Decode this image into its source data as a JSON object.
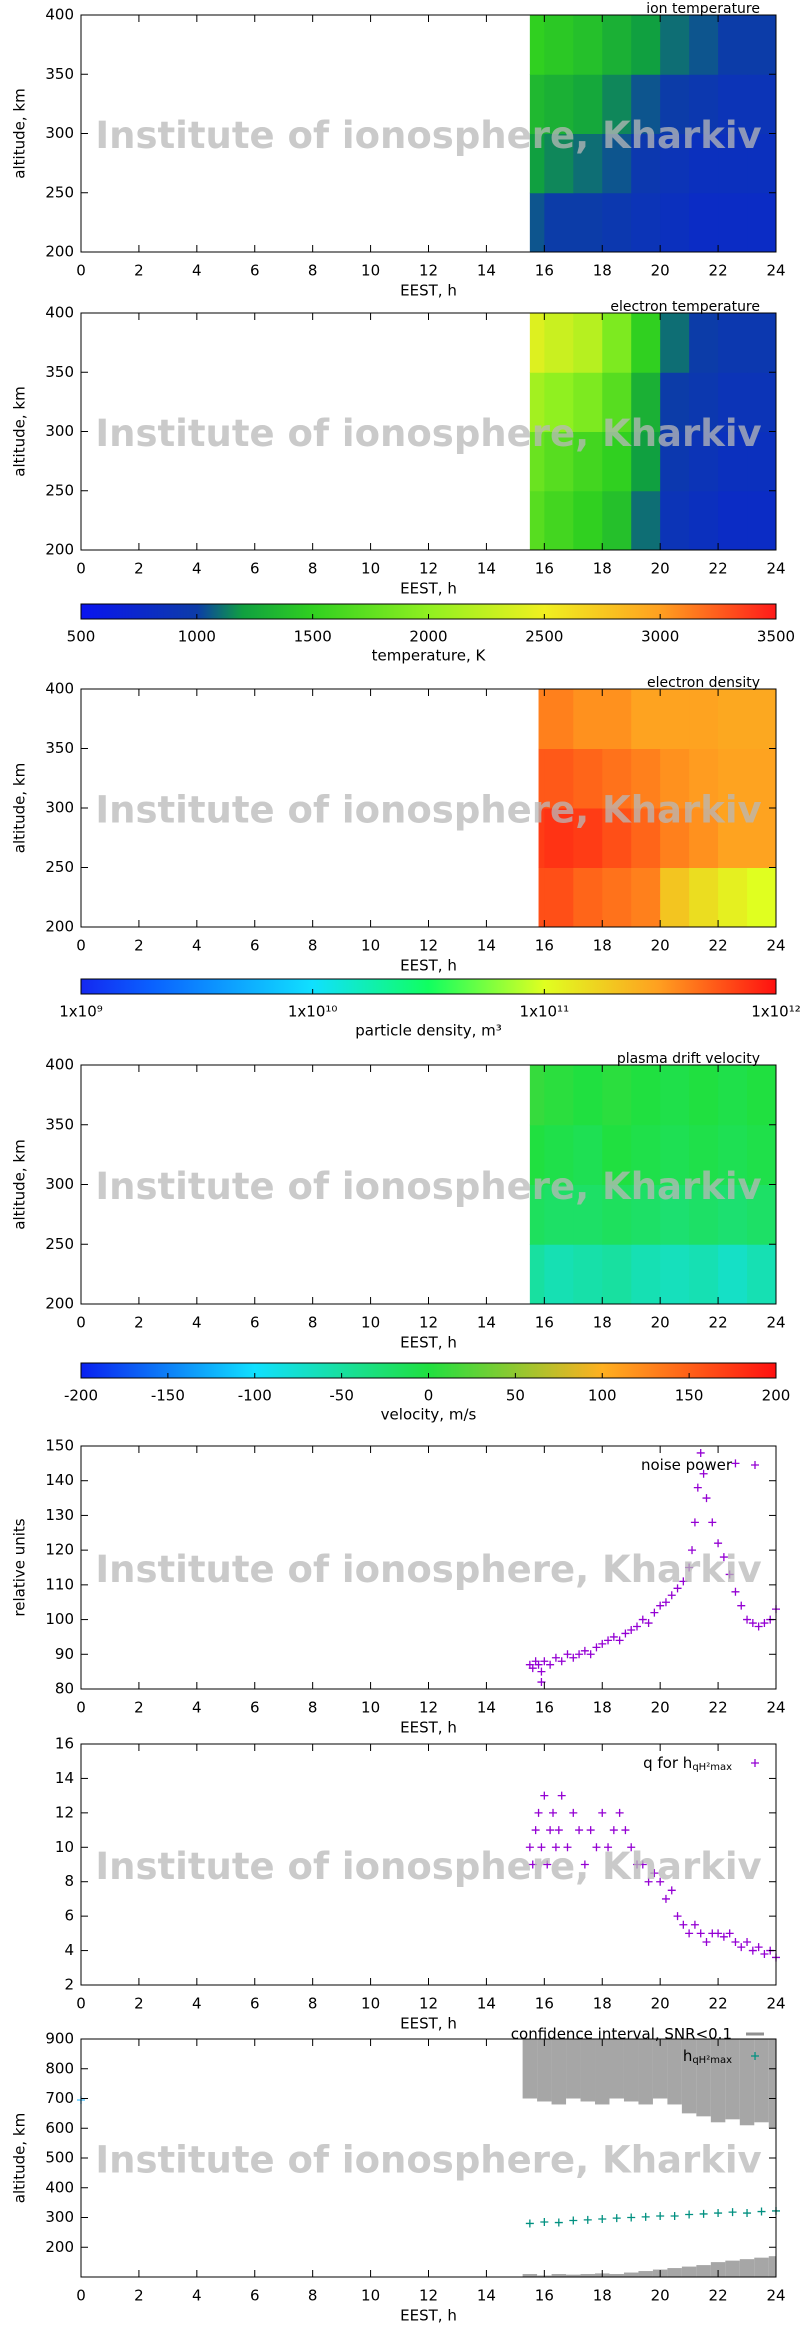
{
  "watermark": "Institute of ionosphere, Kharkiv",
  "chart_data": [
    {
      "type": "heatmap",
      "title": "ion temperature",
      "xlabel": "EEST, h",
      "ylabel": "altitude, km",
      "xlim": [
        0,
        24
      ],
      "xticks": [
        0,
        2,
        4,
        6,
        8,
        10,
        12,
        14,
        16,
        18,
        20,
        22,
        24
      ],
      "ylim": [
        200,
        400
      ],
      "yticks": [
        200,
        250,
        300,
        350,
        400
      ],
      "xbins": [
        15.5,
        16,
        17,
        18,
        19,
        20,
        21,
        22,
        23,
        24
      ],
      "ybins": [
        200,
        250,
        300,
        350,
        400
      ],
      "z": [
        [
          1050,
          1000,
          1000,
          950,
          900,
          850,
          800,
          800,
          800
        ],
        [
          1200,
          1150,
          1100,
          1050,
          950,
          900,
          850,
          850,
          850
        ],
        [
          1350,
          1300,
          1250,
          1150,
          1050,
          1000,
          950,
          900,
          900
        ],
        [
          1500,
          1450,
          1400,
          1300,
          1200,
          1100,
          1050,
          1000,
          1000
        ]
      ]
    },
    {
      "type": "heatmap",
      "title": "electron temperature",
      "xlabel": "EEST, h",
      "ylabel": "altitude, km",
      "xlim": [
        0,
        24
      ],
      "xticks": [
        0,
        2,
        4,
        6,
        8,
        10,
        12,
        14,
        16,
        18,
        20,
        22,
        24
      ],
      "ylim": [
        200,
        400
      ],
      "yticks": [
        200,
        250,
        300,
        350,
        400
      ],
      "xbins": [
        15.5,
        16,
        17,
        18,
        19,
        20,
        21,
        22,
        23,
        24
      ],
      "ybins": [
        200,
        250,
        300,
        350,
        400
      ],
      "z": [
        [
          1700,
          1600,
          1500,
          1400,
          1100,
          900,
          850,
          800,
          800
        ],
        [
          1800,
          1700,
          1600,
          1500,
          1200,
          950,
          900,
          850,
          850
        ],
        [
          2100,
          2000,
          1900,
          1700,
          1300,
          1000,
          950,
          900,
          900
        ],
        [
          2400,
          2300,
          2200,
          1900,
          1500,
          1100,
          1000,
          950,
          950
        ]
      ]
    },
    {
      "type": "colorbar",
      "label": "temperature, K",
      "lim": [
        500,
        3500
      ],
      "ticks": [
        500,
        1000,
        1500,
        2000,
        2500,
        3000,
        3500
      ],
      "colormap": [
        [
          0,
          "#0a14f0"
        ],
        [
          0.167,
          "#0c3ca8"
        ],
        [
          0.233,
          "#10a040"
        ],
        [
          0.333,
          "#30d020"
        ],
        [
          0.5,
          "#90f020"
        ],
        [
          0.667,
          "#f0f020"
        ],
        [
          0.833,
          "#ffa020"
        ],
        [
          1,
          "#ff1a1a"
        ]
      ]
    },
    {
      "type": "heatmap",
      "title": "electron density",
      "xlabel": "EEST, h",
      "ylabel": "altitude, km",
      "xlim": [
        0,
        24
      ],
      "xticks": [
        0,
        2,
        4,
        6,
        8,
        10,
        12,
        14,
        16,
        18,
        20,
        22,
        24
      ],
      "ylim": [
        200,
        400
      ],
      "yticks": [
        200,
        250,
        300,
        350,
        400
      ],
      "xbins": [
        15.8,
        16,
        17,
        18,
        19,
        20,
        21,
        22,
        23,
        24
      ],
      "ybins": [
        200,
        250,
        300,
        350,
        400
      ],
      "z": [
        [
          600000000000,
          600000000000,
          500000000000,
          450000000000,
          400000000000,
          200000000000,
          150000000000,
          120000000000,
          100000000000
        ],
        [
          700000000000,
          750000000000,
          700000000000,
          600000000000,
          500000000000,
          400000000000,
          350000000000,
          300000000000,
          300000000000
        ],
        [
          550000000000,
          550000000000,
          500000000000,
          450000000000,
          400000000000,
          350000000000,
          320000000000,
          300000000000,
          300000000000
        ],
        [
          400000000000,
          400000000000,
          350000000000,
          350000000000,
          300000000000,
          300000000000,
          300000000000,
          280000000000,
          280000000000
        ]
      ]
    },
    {
      "type": "colorbar",
      "label": "particle density, m³",
      "log": true,
      "lim": [
        1000000000,
        1000000000000
      ],
      "ticks": [
        {
          "value": 1000000000,
          "label": "1x10⁹"
        },
        {
          "value": 10000000000,
          "label": "1x10¹⁰"
        },
        {
          "value": 100000000000,
          "label": "1x10¹¹"
        },
        {
          "value": 1000000000000,
          "label": "1x10¹²"
        }
      ],
      "colormap": [
        [
          0,
          "#1428f0"
        ],
        [
          0.1,
          "#0a60ff"
        ],
        [
          0.333,
          "#10e0ff"
        ],
        [
          0.5,
          "#10ff60"
        ],
        [
          0.667,
          "#e0ff20"
        ],
        [
          0.83,
          "#ffa020"
        ],
        [
          1,
          "#ff1010"
        ]
      ]
    },
    {
      "type": "heatmap",
      "title": "plasma drift velocity",
      "xlabel": "EEST, h",
      "ylabel": "altitude, km",
      "xlim": [
        0,
        24
      ],
      "xticks": [
        0,
        2,
        4,
        6,
        8,
        10,
        12,
        14,
        16,
        18,
        20,
        22,
        24
      ],
      "ylim": [
        200,
        400
      ],
      "yticks": [
        200,
        250,
        300,
        350,
        400
      ],
      "xbins": [
        15.5,
        16,
        17,
        18,
        19,
        20,
        21,
        22,
        23,
        24
      ],
      "ybins": [
        200,
        250,
        300,
        350,
        400
      ],
      "z": [
        [
          -50,
          -60,
          -55,
          -50,
          -60,
          -65,
          -60,
          -70,
          -60
        ],
        [
          -15,
          -20,
          -20,
          -15,
          -20,
          -25,
          -20,
          -25,
          -20
        ],
        [
          0,
          -5,
          -10,
          0,
          -5,
          -10,
          -5,
          -10,
          -5
        ],
        [
          10,
          5,
          0,
          5,
          0,
          -5,
          0,
          -5,
          0
        ]
      ]
    },
    {
      "type": "colorbar",
      "label": "velocity, m/s",
      "lim": [
        -200,
        200
      ],
      "ticks": [
        -200,
        -150,
        -100,
        -50,
        0,
        50,
        100,
        150,
        200
      ],
      "colormap": [
        [
          0,
          "#0a20f0"
        ],
        [
          0.25,
          "#10e0ff"
        ],
        [
          0.5,
          "#20e040"
        ],
        [
          0.75,
          "#ffb020"
        ],
        [
          1,
          "#ff1010"
        ]
      ]
    },
    {
      "type": "scatter",
      "xlabel": "EEST, h",
      "ylabel": "relative units",
      "xlim": [
        0,
        24
      ],
      "xticks": [
        0,
        2,
        4,
        6,
        8,
        10,
        12,
        14,
        16,
        18,
        20,
        22,
        24
      ],
      "ylim": [
        80,
        150
      ],
      "yticks": [
        80,
        90,
        100,
        110,
        120,
        130,
        140,
        150
      ],
      "series": [
        {
          "name": "noise power",
          "color": "#9400d3",
          "x": [
            15.5,
            15.6,
            15.7,
            15.8,
            15.9,
            16,
            16.2,
            16.4,
            16.6,
            16.8,
            17,
            17.2,
            17.4,
            17.6,
            17.8,
            18,
            18.2,
            18.4,
            18.6,
            18.8,
            19,
            19.2,
            19.4,
            19.6,
            19.8,
            20,
            20.2,
            20.4,
            20.6,
            20.8,
            21,
            21.1,
            21.2,
            21.3,
            21.4,
            21.5,
            21.6,
            21.8,
            22,
            22.2,
            22.4,
            22.6,
            22.8,
            23,
            23.2,
            23.4,
            23.6,
            23.8,
            24,
            15.9,
            22.6
          ],
          "values": [
            87,
            86,
            88,
            87,
            85,
            88,
            87,
            89,
            88,
            90,
            89,
            90,
            91,
            90,
            92,
            93,
            94,
            95,
            94,
            96,
            97,
            98,
            100,
            99,
            102,
            104,
            105,
            107,
            109,
            111,
            115,
            120,
            128,
            138,
            148,
            142,
            135,
            128,
            122,
            118,
            113,
            108,
            104,
            100,
            99,
            98,
            99,
            100,
            103,
            82,
            145
          ]
        }
      ]
    },
    {
      "type": "scatter",
      "xlabel": "EEST, h",
      "xlim": [
        0,
        24
      ],
      "xticks": [
        0,
        2,
        4,
        6,
        8,
        10,
        12,
        14,
        16,
        18,
        20,
        22,
        24
      ],
      "ylim": [
        2,
        16
      ],
      "yticks": [
        2,
        4,
        6,
        8,
        10,
        12,
        14,
        16
      ],
      "series": [
        {
          "name": "q for h",
          "name_sub": "qH²max",
          "color": "#9400d3",
          "x": [
            15.5,
            15.6,
            15.7,
            15.8,
            15.9,
            16,
            16.1,
            16.2,
            16.3,
            16.4,
            16.5,
            16.6,
            16.8,
            17,
            17.2,
            17.4,
            17.6,
            17.8,
            18,
            18.2,
            18.4,
            18.6,
            18.8,
            19,
            19.2,
            19.4,
            19.6,
            19.8,
            20,
            20.2,
            20.4,
            20.6,
            20.8,
            21,
            21.2,
            21.4,
            21.6,
            21.8,
            22,
            22.2,
            22.4,
            22.6,
            22.8,
            23,
            23.2,
            23.4,
            23.6,
            23.8,
            24
          ],
          "values": [
            10,
            9,
            11,
            12,
            10,
            13,
            9,
            11,
            12,
            10,
            11,
            13,
            10,
            12,
            11,
            9,
            11,
            10,
            12,
            10,
            11,
            12,
            11,
            10,
            9,
            9,
            8,
            8.5,
            8,
            7,
            7.5,
            6,
            5.5,
            5,
            5.5,
            5,
            4.5,
            5,
            5,
            4.8,
            5,
            4.5,
            4.2,
            4.5,
            4,
            4.2,
            3.8,
            4,
            3.6
          ]
        }
      ]
    },
    {
      "type": "scatter",
      "xlabel": "EEST, h",
      "ylabel": "altitude, km",
      "xlim": [
        0,
        24
      ],
      "xticks": [
        0,
        2,
        4,
        6,
        8,
        10,
        12,
        14,
        16,
        18,
        20,
        22,
        24
      ],
      "ylim": [
        100,
        900
      ],
      "yticks": [
        200,
        300,
        400,
        500,
        600,
        700,
        800,
        900
      ],
      "series": [
        {
          "name": "confidence interval, SNR<0.1",
          "color": "#909090",
          "kind": "interval",
          "x": [
            15.5,
            16,
            16.5,
            17,
            17.5,
            18,
            18.5,
            19,
            19.5,
            20,
            20.5,
            21,
            21.5,
            22,
            22.5,
            23,
            23.5,
            24
          ],
          "upper": [
            700,
            690,
            680,
            700,
            690,
            680,
            700,
            690,
            680,
            700,
            680,
            650,
            640,
            620,
            630,
            610,
            620,
            600
          ],
          "lower": [
            110,
            105,
            110,
            108,
            110,
            112,
            110,
            115,
            120,
            125,
            130,
            135,
            140,
            150,
            155,
            160,
            165,
            170
          ]
        },
        {
          "name": "h",
          "name_sub": "qH²max",
          "color": "#009080",
          "x": [
            15.5,
            16,
            16.5,
            17,
            17.5,
            18,
            18.5,
            19,
            19.5,
            20,
            20.5,
            21,
            21.5,
            22,
            22.5,
            23,
            23.5,
            24
          ],
          "values": [
            280,
            285,
            283,
            290,
            292,
            295,
            298,
            300,
            302,
            305,
            305,
            310,
            312,
            315,
            318,
            315,
            320,
            322
          ]
        },
        {
          "color": "#40c0ff",
          "x": [
            0
          ],
          "values": [
            695
          ]
        }
      ]
    }
  ]
}
